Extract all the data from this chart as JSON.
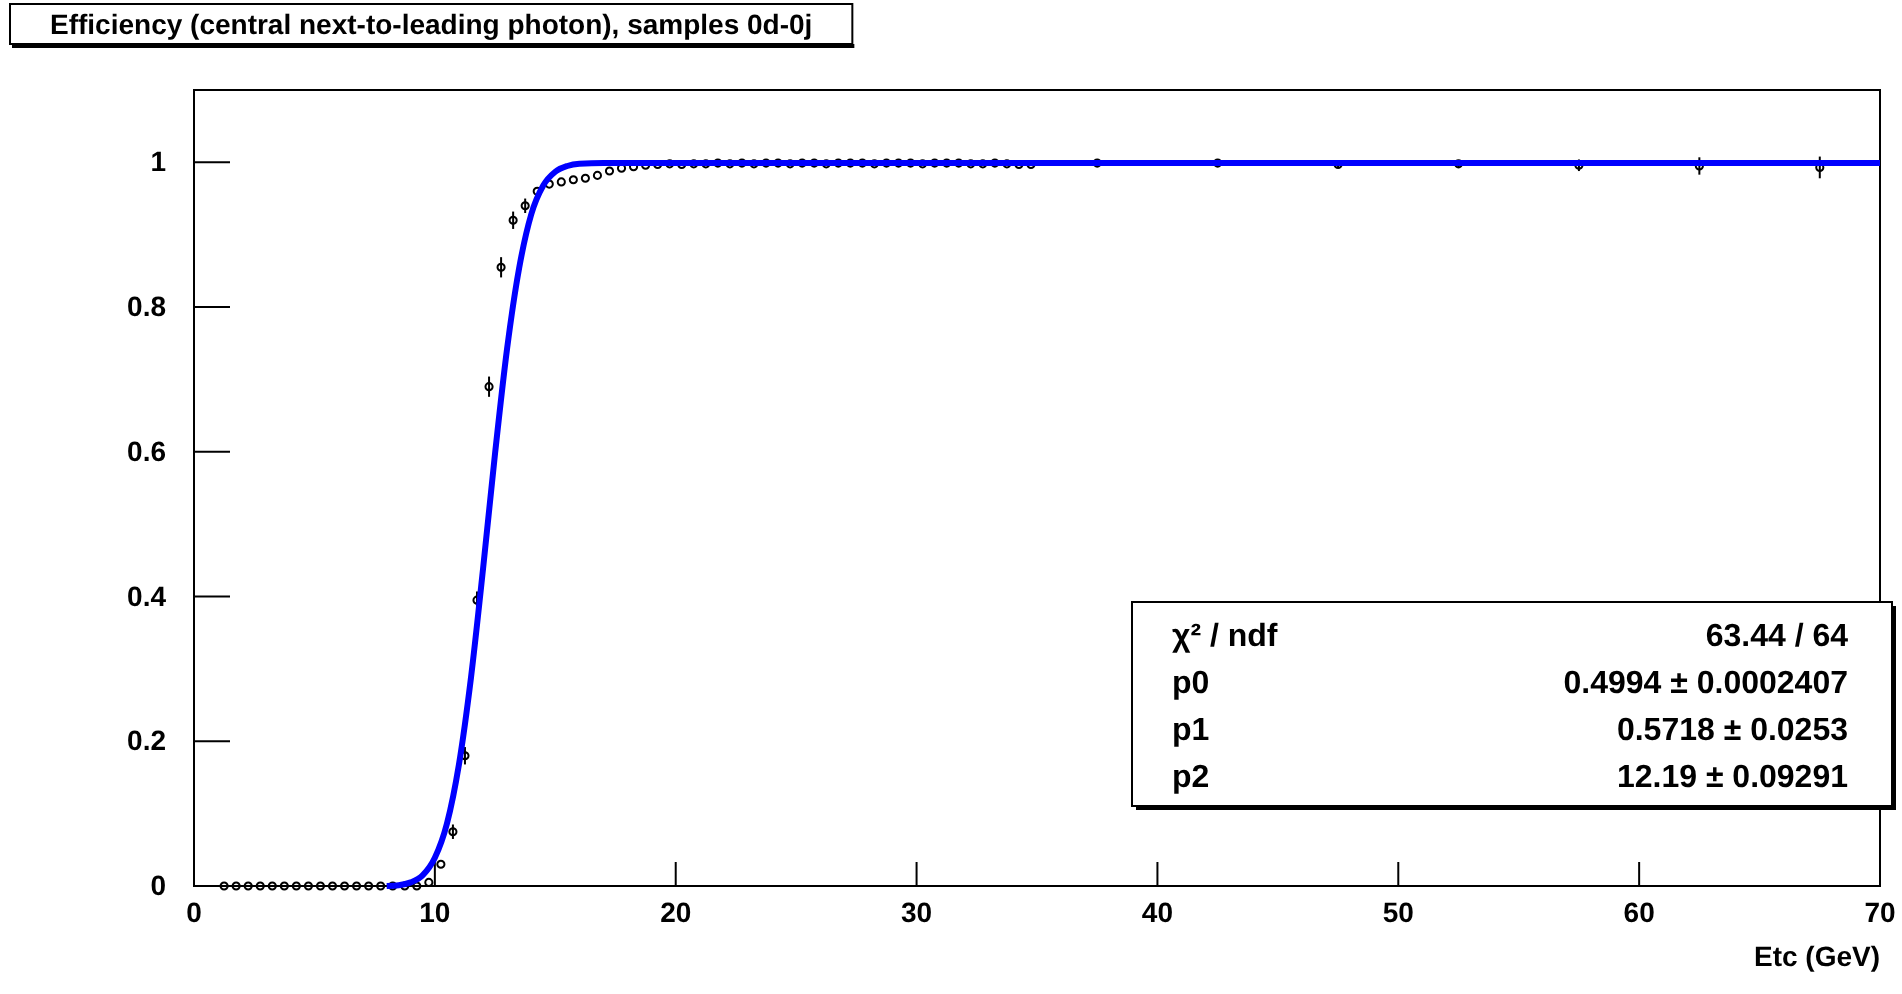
{
  "chart_data": {
    "type": "scatter",
    "title": "Efficiency (central next-to-leading photon), samples 0d-0j",
    "xlabel": "Etc (GeV)",
    "xlim": [
      0,
      70
    ],
    "xticks": [
      0,
      10,
      20,
      30,
      40,
      50,
      60,
      70
    ],
    "ylim": [
      0,
      1.1
    ],
    "yticks": [
      0,
      0.2,
      0.4,
      0.6,
      0.8,
      1
    ],
    "grid": false,
    "annotations": [
      "χ² / ndf",
      "63.44 / 64",
      "p0",
      "0.4994 ± 0.0002407",
      "p1",
      "0.5718 ± 0.0253",
      "p2",
      "12.19 ± 0.09291"
    ],
    "series": [
      {
        "marker": "circle",
        "color": "#000000",
        "x": [
          1.25,
          1.75,
          2.25,
          2.75,
          3.25,
          3.75,
          4.25,
          4.75,
          5.25,
          5.75,
          6.25,
          6.75,
          7.25,
          7.75,
          8.25,
          8.75,
          9.25,
          9.75,
          10.25,
          10.75,
          11.25,
          11.75,
          12.25,
          12.75,
          13.25,
          13.75,
          14.25,
          14.75,
          15.25,
          15.75,
          16.25,
          16.75,
          17.25,
          17.75,
          18.25,
          18.75,
          19.25,
          19.75,
          20.25,
          20.75,
          21.25,
          21.75,
          22.25,
          22.75,
          23.25,
          23.75,
          24.25,
          24.75,
          25.25,
          25.75,
          26.25,
          26.75,
          27.25,
          27.75,
          28.25,
          28.75,
          29.25,
          29.75,
          30.25,
          30.75,
          31.25,
          31.75,
          32.25,
          32.75,
          33.25,
          33.75,
          34.25,
          34.75,
          37.5,
          42.5,
          47.5,
          52.5,
          57.5,
          62.5,
          67.5
        ],
        "values": [
          0,
          0,
          0,
          0,
          0,
          0,
          0,
          0,
          0,
          0,
          0,
          0,
          0,
          0,
          0,
          0,
          0,
          0.005,
          0.03,
          0.075,
          0.18,
          0.395,
          0.69,
          0.855,
          0.92,
          0.94,
          0.96,
          0.97,
          0.973,
          0.976,
          0.978,
          0.982,
          0.988,
          0.992,
          0.994,
          0.996,
          0.997,
          0.998,
          0.997,
          0.998,
          0.998,
          0.999,
          0.998,
          0.999,
          0.998,
          0.999,
          0.999,
          0.998,
          0.999,
          0.999,
          0.998,
          0.999,
          0.999,
          0.999,
          0.998,
          0.999,
          0.999,
          0.999,
          0.998,
          0.999,
          0.999,
          0.999,
          0.998,
          0.998,
          0.999,
          0.998,
          0.997,
          0.997,
          0.999,
          0.999,
          0.997,
          0.998,
          0.996,
          0.995,
          0.993
        ],
        "errors": [
          null,
          null,
          null,
          null,
          null,
          null,
          null,
          null,
          null,
          null,
          null,
          null,
          null,
          null,
          null,
          null,
          null,
          null,
          null,
          0.01,
          0.012,
          0.012,
          0.014,
          0.014,
          0.012,
          0.01,
          null,
          null,
          null,
          null,
          null,
          null,
          null,
          null,
          null,
          null,
          null,
          null,
          null,
          null,
          null,
          null,
          null,
          null,
          null,
          null,
          null,
          null,
          null,
          null,
          null,
          null,
          null,
          null,
          null,
          null,
          null,
          null,
          null,
          null,
          null,
          null,
          null,
          null,
          null,
          null,
          null,
          null,
          null,
          null,
          0.004,
          0.005,
          0.008,
          0.012,
          0.015
        ]
      },
      {
        "type": "line",
        "color": "#0000ff",
        "x": [
          8,
          8.5,
          9,
          9.5,
          10,
          10.5,
          11,
          11.5,
          12,
          12.5,
          13,
          13.5,
          14,
          14.5,
          15,
          15.5,
          16,
          17,
          18,
          70
        ],
        "values": [
          0,
          0.001,
          0.005,
          0.015,
          0.039,
          0.086,
          0.168,
          0.288,
          0.438,
          0.598,
          0.743,
          0.854,
          0.928,
          0.968,
          0.987,
          0.995,
          0.998,
          0.999,
          0.999,
          0.999
        ]
      }
    ]
  }
}
